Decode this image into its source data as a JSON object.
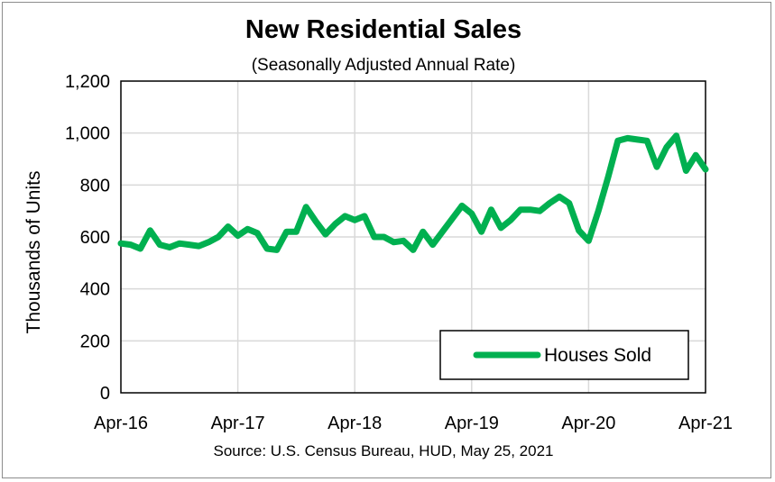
{
  "chart_data": {
    "type": "line",
    "title": "New Residential Sales",
    "subtitle": "(Seasonally Adjusted Annual Rate)",
    "ylabel": "Thousands of Units",
    "source": "Source:  U.S. Census Bureau, HUD, May 25, 2021",
    "x_tick_labels": [
      "Apr-16",
      "Apr-17",
      "Apr-18",
      "Apr-19",
      "Apr-20",
      "Apr-21"
    ],
    "y_tick_labels": [
      "0",
      "200",
      "400",
      "600",
      "800",
      "1,000",
      "1,200"
    ],
    "ylim": [
      0,
      1200
    ],
    "grid": true,
    "legend_position": "bottom-right",
    "series": [
      {
        "name": "Houses Sold",
        "color": "#00b050",
        "x": [
          "Apr-16",
          "May-16",
          "Jun-16",
          "Jul-16",
          "Aug-16",
          "Sep-16",
          "Oct-16",
          "Nov-16",
          "Dec-16",
          "Jan-17",
          "Feb-17",
          "Mar-17",
          "Apr-17",
          "May-17",
          "Jun-17",
          "Jul-17",
          "Aug-17",
          "Sep-17",
          "Oct-17",
          "Nov-17",
          "Dec-17",
          "Jan-18",
          "Feb-18",
          "Mar-18",
          "Apr-18",
          "May-18",
          "Jun-18",
          "Jul-18",
          "Aug-18",
          "Sep-18",
          "Oct-18",
          "Nov-18",
          "Dec-18",
          "Jan-19",
          "Feb-19",
          "Mar-19",
          "Apr-19",
          "May-19",
          "Jun-19",
          "Jul-19",
          "Aug-19",
          "Sep-19",
          "Oct-19",
          "Nov-19",
          "Dec-19",
          "Jan-20",
          "Feb-20",
          "Mar-20",
          "Apr-20",
          "May-20",
          "Jun-20",
          "Jul-20",
          "Aug-20",
          "Sep-20",
          "Oct-20",
          "Nov-20",
          "Dec-20",
          "Jan-21",
          "Feb-21",
          "Mar-21",
          "Apr-21"
        ],
        "values": [
          575,
          570,
          555,
          625,
          570,
          560,
          575,
          570,
          565,
          580,
          600,
          640,
          605,
          630,
          615,
          555,
          550,
          620,
          620,
          715,
          660,
          610,
          650,
          680,
          665,
          680,
          600,
          600,
          580,
          585,
          550,
          620,
          570,
          620,
          670,
          720,
          690,
          620,
          705,
          635,
          665,
          705,
          705,
          700,
          730,
          755,
          730,
          625,
          585,
          700,
          830,
          970,
          980,
          975,
          970,
          870,
          945,
          990,
          855,
          915,
          860
        ]
      }
    ]
  }
}
